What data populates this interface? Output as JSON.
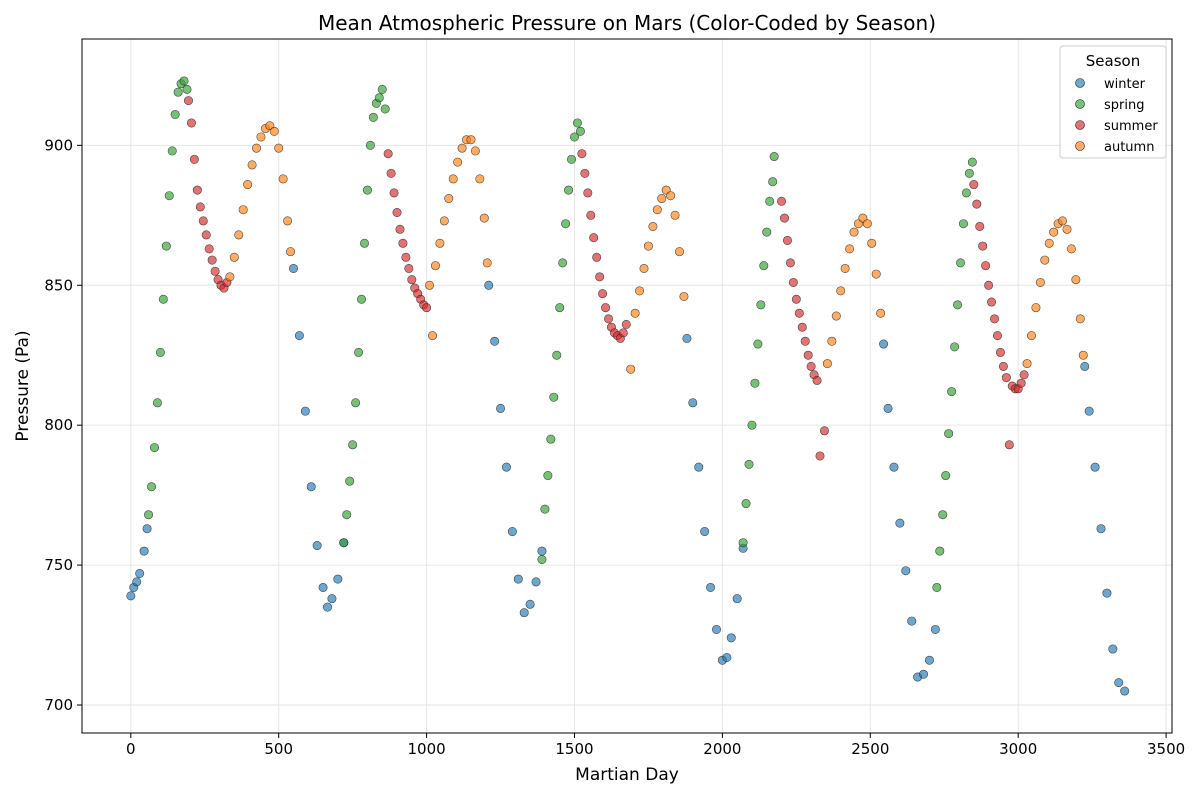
{
  "chart_data": {
    "type": "scatter",
    "title": "Mean Atmospheric Pressure on Mars (Color-Coded by Season)",
    "xlabel": "Martian Day",
    "ylabel": "Pressure (Pa)",
    "xlim": [
      -165,
      3520
    ],
    "ylim": [
      690,
      938
    ],
    "xticks": [
      0,
      500,
      1000,
      1500,
      2000,
      2500,
      3000,
      3500
    ],
    "yticks": [
      700,
      750,
      800,
      850,
      900
    ],
    "grid": true,
    "legend": {
      "title": "Season",
      "placement": "top-right",
      "entries": [
        "winter",
        "spring",
        "summer",
        "autumn"
      ]
    },
    "colors": {
      "winter": "#1f77b4",
      "spring": "#2ca02c",
      "summer": "#d62728",
      "autumn": "#ff7f0e"
    },
    "series": [
      {
        "name": "winter",
        "x": [
          0,
          10,
          20,
          30,
          45,
          55,
          550,
          570,
          590,
          610,
          630,
          650,
          665,
          680,
          700,
          720,
          1210,
          1230,
          1250,
          1270,
          1290,
          1310,
          1330,
          1350,
          1370,
          1390,
          1880,
          1900,
          1920,
          1940,
          1960,
          1980,
          2000,
          2015,
          2030,
          2050,
          2070,
          2545,
          2560,
          2580,
          2600,
          2620,
          2640,
          2660,
          2680,
          2700,
          2720,
          3225,
          3240,
          3260,
          3280,
          3300,
          3320,
          3340,
          3360
        ],
        "y": [
          739,
          742,
          744,
          747,
          755,
          763,
          856,
          832,
          805,
          778,
          757,
          742,
          735,
          738,
          745,
          758,
          850,
          830,
          806,
          785,
          762,
          745,
          733,
          736,
          744,
          755,
          831,
          808,
          785,
          762,
          742,
          727,
          716,
          717,
          724,
          738,
          756,
          829,
          806,
          785,
          765,
          748,
          730,
          710,
          711,
          716,
          727,
          821,
          805,
          785,
          763,
          740,
          720,
          708,
          705
        ]
      },
      {
        "name": "spring",
        "x": [
          60,
          70,
          80,
          90,
          100,
          110,
          120,
          130,
          140,
          150,
          160,
          170,
          180,
          190,
          720,
          730,
          740,
          750,
          760,
          770,
          780,
          790,
          800,
          810,
          820,
          830,
          840,
          850,
          860,
          1390,
          1400,
          1410,
          1420,
          1430,
          1440,
          1450,
          1460,
          1470,
          1480,
          1490,
          1500,
          1510,
          1520,
          2070,
          2080,
          2090,
          2100,
          2110,
          2120,
          2130,
          2140,
          2150,
          2160,
          2170,
          2175,
          2725,
          2735,
          2745,
          2755,
          2765,
          2775,
          2785,
          2795,
          2805,
          2815,
          2825,
          2835,
          2845
        ],
        "y": [
          768,
          778,
          792,
          808,
          826,
          845,
          864,
          882,
          898,
          911,
          919,
          922,
          923,
          920,
          758,
          768,
          780,
          793,
          808,
          826,
          845,
          865,
          884,
          900,
          910,
          915,
          917,
          920,
          913,
          752,
          770,
          782,
          795,
          810,
          825,
          842,
          858,
          872,
          884,
          895,
          903,
          908,
          905,
          758,
          772,
          786,
          800,
          815,
          829,
          843,
          857,
          869,
          880,
          887,
          896,
          742,
          755,
          768,
          782,
          797,
          812,
          828,
          843,
          858,
          872,
          883,
          890,
          894
        ]
      },
      {
        "name": "summer",
        "x": [
          195,
          205,
          215,
          225,
          235,
          245,
          255,
          265,
          275,
          285,
          295,
          305,
          315,
          325,
          870,
          880,
          890,
          900,
          910,
          920,
          930,
          940,
          950,
          960,
          970,
          980,
          990,
          1000,
          1525,
          1535,
          1545,
          1555,
          1565,
          1575,
          1585,
          1595,
          1605,
          1615,
          1625,
          1635,
          1645,
          1655,
          1665,
          1675,
          2200,
          2210,
          2220,
          2230,
          2240,
          2250,
          2260,
          2270,
          2280,
          2290,
          2300,
          2310,
          2320,
          2330,
          2345,
          2850,
          2860,
          2870,
          2880,
          2890,
          2900,
          2910,
          2920,
          2930,
          2940,
          2950,
          2960,
          2970,
          2980,
          2990,
          3000,
          3010,
          3020
        ],
        "y": [
          916,
          908,
          895,
          884,
          878,
          873,
          868,
          863,
          859,
          855,
          852,
          850,
          849,
          851,
          897,
          890,
          883,
          876,
          870,
          865,
          860,
          856,
          852,
          849,
          847,
          845,
          843,
          842,
          897,
          890,
          883,
          875,
          867,
          860,
          853,
          847,
          842,
          838,
          835,
          833,
          832,
          831,
          833,
          836,
          880,
          874,
          866,
          858,
          851,
          845,
          840,
          835,
          830,
          825,
          821,
          818,
          816,
          789,
          798,
          886,
          879,
          871,
          864,
          857,
          850,
          844,
          838,
          832,
          826,
          821,
          817,
          793,
          814,
          813,
          813,
          815,
          818
        ]
      },
      {
        "name": "autumn",
        "x": [
          335,
          350,
          365,
          380,
          395,
          410,
          425,
          440,
          455,
          470,
          485,
          500,
          515,
          530,
          540,
          1010,
          1020,
          1030,
          1045,
          1060,
          1075,
          1090,
          1105,
          1120,
          1135,
          1150,
          1165,
          1180,
          1195,
          1205,
          1690,
          1705,
          1720,
          1735,
          1750,
          1765,
          1780,
          1795,
          1810,
          1825,
          1840,
          1855,
          1870,
          2355,
          2370,
          2385,
          2400,
          2415,
          2430,
          2445,
          2460,
          2475,
          2490,
          2505,
          2520,
          2535,
          3030,
          3045,
          3060,
          3075,
          3090,
          3105,
          3120,
          3135,
          3150,
          3165,
          3180,
          3195,
          3210,
          3220
        ],
        "y": [
          853,
          860,
          868,
          877,
          886,
          893,
          899,
          903,
          906,
          907,
          905,
          899,
          888,
          873,
          862,
          850,
          832,
          857,
          865,
          873,
          881,
          888,
          894,
          899,
          902,
          902,
          898,
          888,
          874,
          858,
          820,
          840,
          848,
          856,
          864,
          871,
          877,
          881,
          884,
          882,
          875,
          862,
          846,
          822,
          830,
          839,
          848,
          856,
          863,
          869,
          872,
          874,
          872,
          865,
          854,
          840,
          822,
          832,
          842,
          851,
          859,
          865,
          869,
          872,
          873,
          870,
          863,
          852,
          838,
          825
        ]
      }
    ]
  }
}
